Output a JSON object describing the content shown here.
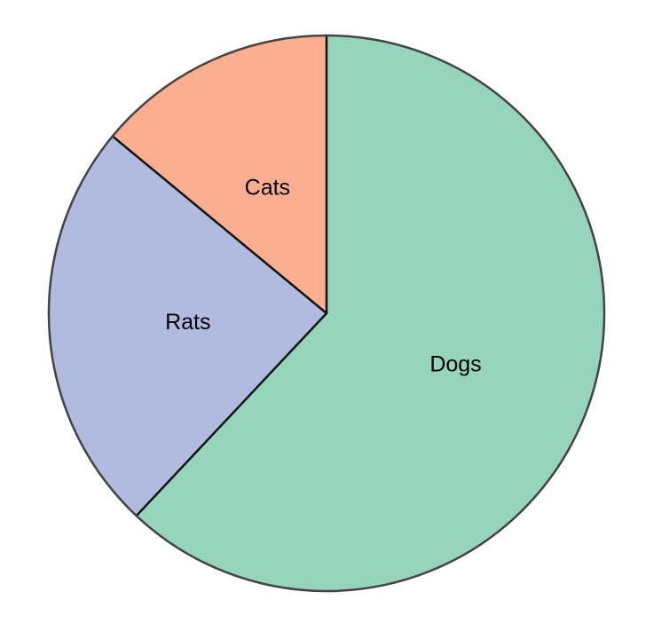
{
  "chart_data": {
    "type": "pie",
    "title": "",
    "start_angle_deg": 90,
    "direction": "counterclockwise",
    "slices": [
      {
        "label": "Cats",
        "value": 14,
        "color": "#fcae91"
      },
      {
        "label": "Rats",
        "value": 24,
        "color": "#b0bbdf"
      },
      {
        "label": "Dogs",
        "value": 62,
        "color": "#97d4bd"
      }
    ],
    "edge_color": "#444444",
    "divider_color": "#111111"
  }
}
